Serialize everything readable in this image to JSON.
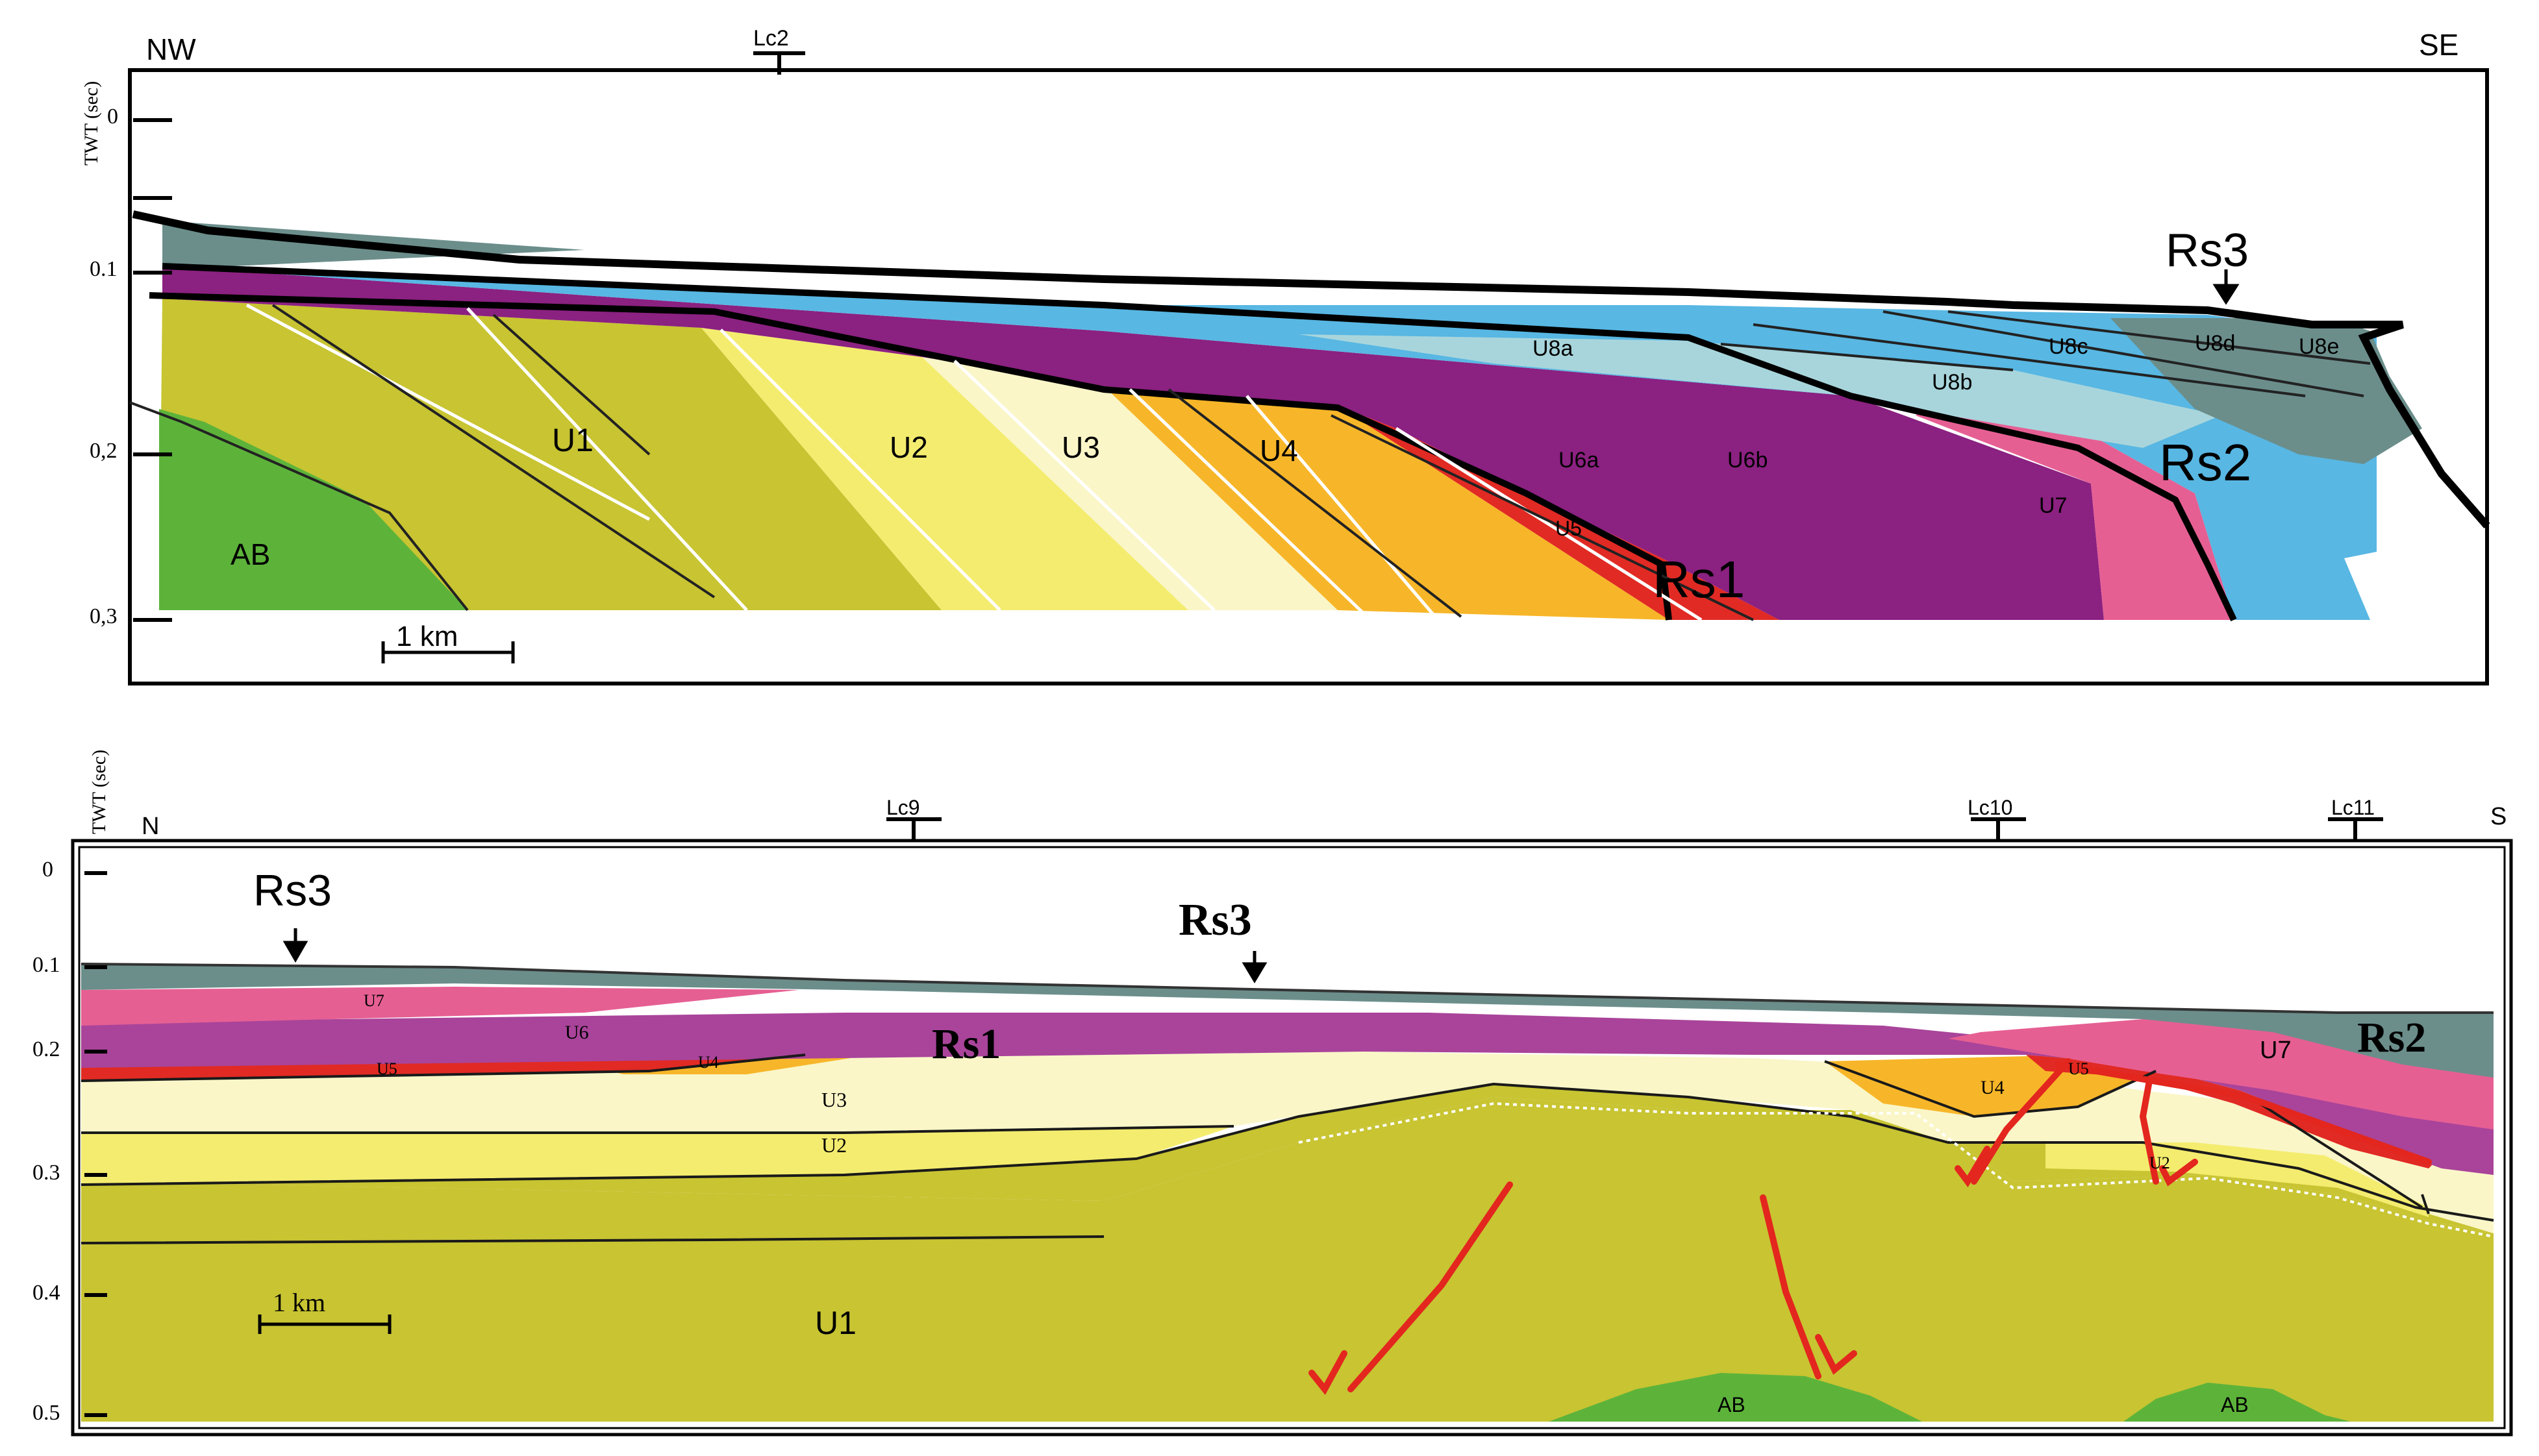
{
  "top_section": {
    "left_direction": "NW",
    "right_direction": "SE",
    "axis_label": "TWT (sec)",
    "ticks": [
      "0",
      "0.1",
      "0,2",
      "0,3"
    ],
    "well": "Lc2",
    "scale_bar": "1 km",
    "units": {
      "ab": "AB",
      "u1": "U1",
      "u2": "U2",
      "u3": "U3",
      "u4": "U4",
      "u5": "U5",
      "u6a": "U6a",
      "u6b": "U6b",
      "u7": "U7",
      "u8a": "U8a",
      "u8b": "U8b",
      "u8c": "U8c",
      "u8d": "U8d",
      "u8e": "U8e"
    },
    "surfaces": {
      "rs1": "Rs1",
      "rs2": "Rs2",
      "rs3": "Rs3"
    }
  },
  "bottom_section": {
    "left_direction": "N",
    "right_direction": "S",
    "axis_label": "TWT (sec)",
    "ticks": [
      "0",
      "0.1",
      "0.2",
      "0.3",
      "0.4",
      "0.5"
    ],
    "wells": [
      "Lc9",
      "Lc10",
      "Lc11"
    ],
    "scale_bar": "1 km",
    "units": {
      "u1": "U1",
      "u2": "U2",
      "u3": "U3",
      "u4a": "U4",
      "u4b": "U4",
      "u5a": "U5",
      "u5b": "U5",
      "u2b": "U2",
      "u6": "U6",
      "u7a": "U7",
      "u7b": "U7",
      "ab1": "AB",
      "ab2": "AB"
    },
    "surfaces": {
      "rs1": "Rs1",
      "rs2": "Rs2",
      "rs3a": "Rs3",
      "rs3b": "Rs3"
    }
  },
  "colors": {
    "ab": "#5db33a",
    "u1": "#c8c432",
    "u2": "#f4ec6e",
    "u3": "#faf6c8",
    "u4": "#f7b629",
    "u5": "#e12a24",
    "u6": "#8b2181",
    "u6b": "#a9449a",
    "u7": "#e65f93",
    "u8a": "#a8d5dc",
    "u8c": "#58b7e3",
    "u8d": "#6b8e8b",
    "fault": "#e3261e"
  }
}
